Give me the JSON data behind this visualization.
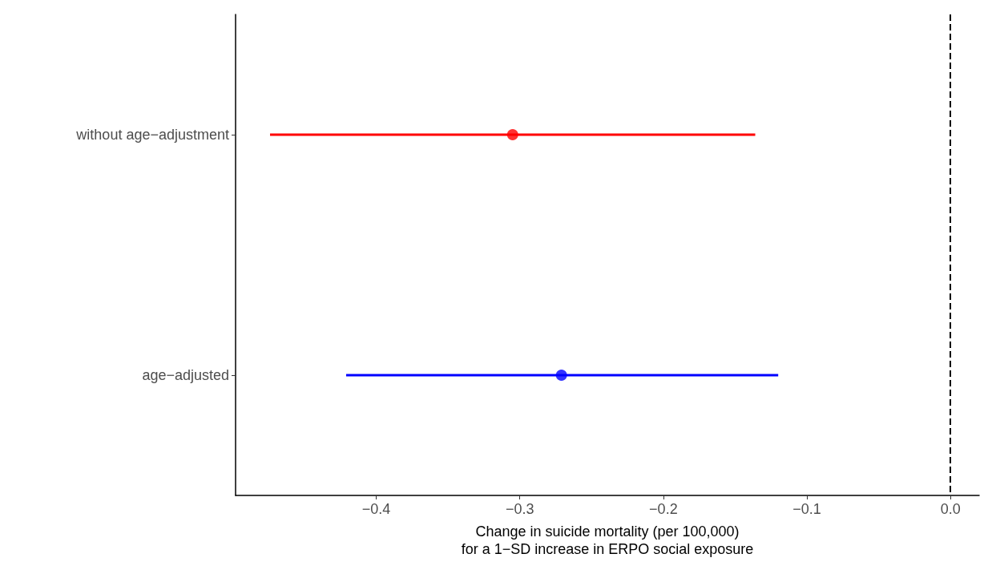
{
  "chart_data": {
    "type": "scatter",
    "orientation": "horizontal",
    "categories": [
      "without age−adjustment",
      "age−adjusted"
    ],
    "values": [
      -0.305,
      -0.271
    ],
    "errors": [
      [
        -0.474,
        -0.136
      ],
      [
        -0.421,
        -0.12
      ]
    ],
    "colors": [
      "#ff0000",
      "#0000ff"
    ],
    "xlabel": "Change in suicide mortality (per 100,000)\nfor a 1−SD increase in ERPO social exposure",
    "xlim": [
      -0.498,
      0.02
    ],
    "xticks": [
      {
        "value": -0.4,
        "label": "−0.4"
      },
      {
        "value": -0.3,
        "label": "−0.3"
      },
      {
        "value": -0.2,
        "label": "−0.2"
      },
      {
        "value": -0.1,
        "label": "−0.1"
      },
      {
        "value": 0,
        "label": "0.0"
      }
    ],
    "ref_lines": [
      {
        "axis": "x",
        "value": 0,
        "color": "#000000",
        "line_style": "dashed"
      }
    ],
    "grid": false,
    "legend": false,
    "marker": "circle"
  }
}
